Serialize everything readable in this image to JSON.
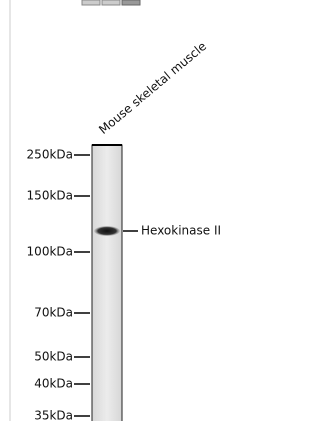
{
  "lane_label": "Mouse skeletal muscle",
  "markers": [
    "250kDa",
    "150kDa",
    "100kDa",
    "70kDa",
    "50kDa",
    "40kDa",
    "35kDa"
  ],
  "band_label": "Hexokinase II"
}
